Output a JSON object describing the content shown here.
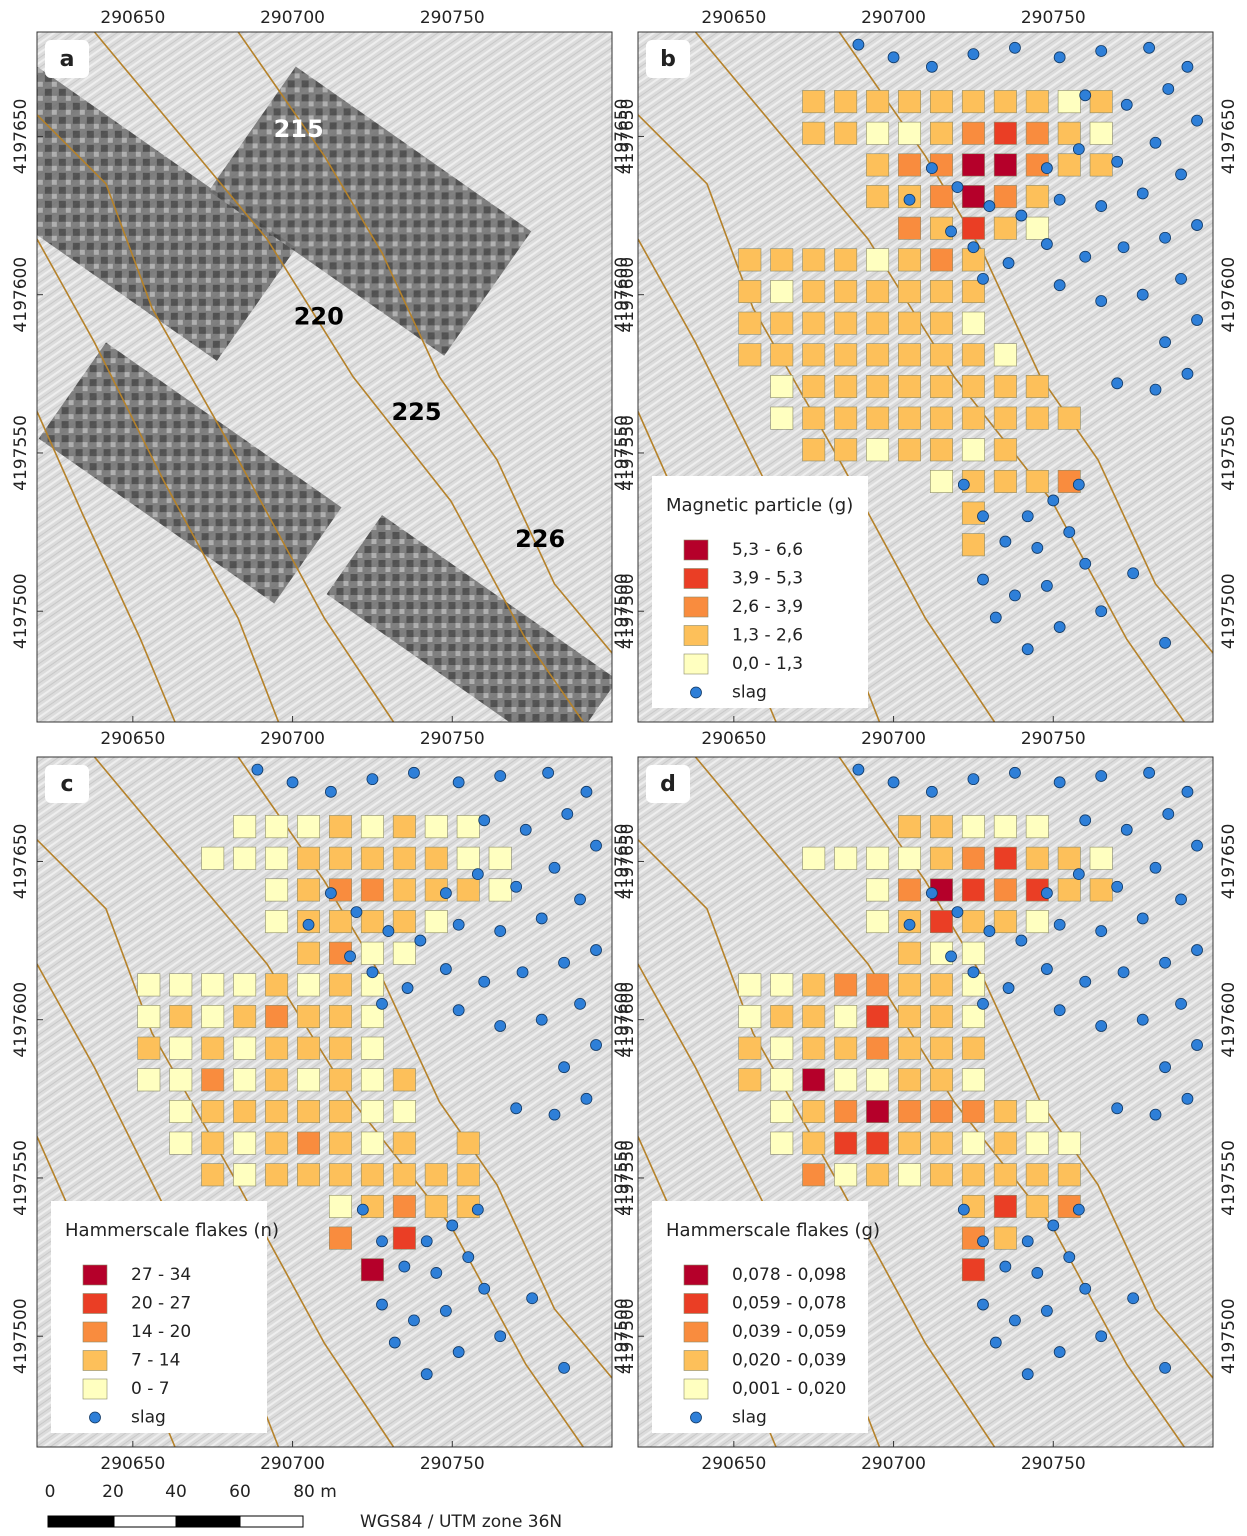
{
  "coordinate_system": "WGS84 / UTM zone 36N",
  "scale_bar": [
    "0",
    "20",
    "40",
    "60",
    "80 m"
  ],
  "axes": {
    "xlim": [
      290620,
      290800
    ],
    "ylim": [
      4197465,
      4197683
    ],
    "xticks": [
      290650,
      290700,
      290750
    ],
    "yticks": [
      4197500,
      4197550,
      4197600,
      4197650
    ]
  },
  "slag": {
    "label": "slag",
    "color": "#2e7fd8",
    "points": [
      [
        290689,
        4197679
      ],
      [
        290700,
        4197675
      ],
      [
        290712,
        4197672
      ],
      [
        290725,
        4197676
      ],
      [
        290738,
        4197678
      ],
      [
        290752,
        4197675
      ],
      [
        290765,
        4197677
      ],
      [
        290780,
        4197678
      ],
      [
        290792,
        4197672
      ],
      [
        290786,
        4197665
      ],
      [
        290773,
        4197660
      ],
      [
        290760,
        4197663
      ],
      [
        290795,
        4197655
      ],
      [
        290782,
        4197648
      ],
      [
        290770,
        4197642
      ],
      [
        290758,
        4197646
      ],
      [
        290748,
        4197640
      ],
      [
        290790,
        4197638
      ],
      [
        290778,
        4197632
      ],
      [
        290765,
        4197628
      ],
      [
        290752,
        4197630
      ],
      [
        290740,
        4197625
      ],
      [
        290730,
        4197628
      ],
      [
        290720,
        4197634
      ],
      [
        290712,
        4197640
      ],
      [
        290705,
        4197630
      ],
      [
        290795,
        4197622
      ],
      [
        290785,
        4197618
      ],
      [
        290772,
        4197615
      ],
      [
        290760,
        4197612
      ],
      [
        290748,
        4197616
      ],
      [
        290736,
        4197610
      ],
      [
        290725,
        4197615
      ],
      [
        290790,
        4197605
      ],
      [
        290778,
        4197600
      ],
      [
        290765,
        4197598
      ],
      [
        290752,
        4197603
      ],
      [
        290795,
        4197592
      ],
      [
        290785,
        4197585
      ],
      [
        290792,
        4197575
      ],
      [
        290782,
        4197570
      ],
      [
        290770,
        4197572
      ],
      [
        290718,
        4197620
      ],
      [
        290728,
        4197605
      ],
      [
        290758,
        4197540
      ],
      [
        290750,
        4197535
      ],
      [
        290742,
        4197530
      ],
      [
        290755,
        4197525
      ],
      [
        290745,
        4197520
      ],
      [
        290735,
        4197522
      ],
      [
        290760,
        4197515
      ],
      [
        290748,
        4197508
      ],
      [
        290738,
        4197505
      ],
      [
        290728,
        4197510
      ],
      [
        290752,
        4197495
      ],
      [
        290742,
        4197488
      ],
      [
        290765,
        4197500
      ],
      [
        290732,
        4197498
      ],
      [
        290775,
        4197512
      ],
      [
        290785,
        4197490
      ],
      [
        290722,
        4197540
      ],
      [
        290728,
        4197530
      ]
    ]
  },
  "panels": [
    {
      "label": "a",
      "annotations": [
        "215",
        "220",
        "225",
        "226"
      ]
    },
    {
      "label": "b",
      "legend": {
        "title": "Magnetic particle (g)",
        "classes": [
          {
            "label": "5,3 - 6,6",
            "color": "#b5002a"
          },
          {
            "label": "3,9 - 5,3",
            "color": "#ea3e25"
          },
          {
            "label": "2,6 - 3,9",
            "color": "#f98c3e"
          },
          {
            "label": "1,3 - 2,6",
            "color": "#fdc05a"
          },
          {
            "label": "0,0 - 1,3",
            "color": "#ffffc0"
          }
        ]
      },
      "rows": [
        {
          "northing": 4197661,
          "easting": 290675,
          "classes": [
            3,
            3,
            3,
            3,
            3,
            3,
            3,
            3,
            4,
            3
          ]
        },
        {
          "northing": 4197651,
          "easting": 290675,
          "classes": [
            3,
            3,
            4,
            4,
            3,
            2,
            1,
            2,
            3,
            4
          ]
        },
        {
          "northing": 4197641,
          "easting": 290695,
          "classes": [
            3,
            2,
            2,
            0,
            0,
            2,
            3,
            3
          ]
        },
        {
          "northing": 4197631,
          "easting": 290695,
          "classes": [
            3,
            3,
            2,
            0,
            2,
            3
          ]
        },
        {
          "northing": 4197621,
          "easting": 290705,
          "classes": [
            2,
            3,
            1,
            3,
            4
          ]
        },
        {
          "northing": 4197611,
          "easting": 290655,
          "classes": [
            3,
            3,
            3,
            3,
            4,
            3,
            2,
            3
          ]
        },
        {
          "northing": 4197601,
          "easting": 290655,
          "classes": [
            3,
            4,
            3,
            3,
            3,
            3,
            3,
            3
          ]
        },
        {
          "northing": 4197591,
          "easting": 290655,
          "classes": [
            3,
            3,
            3,
            3,
            3,
            3,
            3,
            4
          ]
        },
        {
          "northing": 4197581,
          "easting": 290655,
          "classes": [
            3,
            3,
            3,
            3,
            3,
            3,
            3,
            3,
            4
          ]
        },
        {
          "northing": 4197571,
          "easting": 290665,
          "classes": [
            4,
            3,
            3,
            3,
            3,
            3,
            3,
            3,
            3
          ]
        },
        {
          "northing": 4197561,
          "easting": 290665,
          "classes": [
            4,
            3,
            3,
            3,
            3,
            3,
            3,
            3,
            3,
            3
          ]
        },
        {
          "northing": 4197551,
          "easting": 290675,
          "classes": [
            3,
            3,
            4,
            3,
            3,
            4,
            3
          ]
        },
        {
          "northing": 4197541,
          "easting": 290715,
          "classes": [
            4,
            3,
            3,
            3,
            2
          ]
        },
        {
          "northing": 4197531,
          "easting": 290725,
          "classes": [
            3
          ]
        },
        {
          "northing": 4197521,
          "easting": 290725,
          "classes": [
            3
          ]
        }
      ]
    },
    {
      "label": "c",
      "legend": {
        "title": "Hammerscale flakes (n)",
        "classes": [
          {
            "label": "27 - 34",
            "color": "#b5002a"
          },
          {
            "label": "20 - 27",
            "color": "#ea3e25"
          },
          {
            "label": "14 - 20",
            "color": "#f98c3e"
          },
          {
            "label": "7 - 14",
            "color": "#fdc05a"
          },
          {
            "label": "0 - 7",
            "color": "#ffffc0"
          }
        ]
      },
      "rows": [
        {
          "northing": 4197661,
          "easting": 290685,
          "classes": [
            4,
            4,
            4,
            3,
            4,
            3,
            4,
            4
          ]
        },
        {
          "northing": 4197651,
          "easting": 290675,
          "classes": [
            4,
            4,
            4,
            3,
            3,
            3,
            3,
            3,
            4,
            4
          ]
        },
        {
          "northing": 4197641,
          "easting": 290695,
          "classes": [
            4,
            3,
            2,
            2,
            3,
            3,
            3,
            4
          ]
        },
        {
          "northing": 4197631,
          "easting": 290695,
          "classes": [
            4,
            3,
            3,
            3,
            3,
            4
          ]
        },
        {
          "northing": 4197621,
          "easting": 290705,
          "classes": [
            3,
            2,
            4,
            4
          ]
        },
        {
          "northing": 4197611,
          "easting": 290655,
          "classes": [
            4,
            4,
            4,
            4,
            3,
            4,
            3,
            4
          ]
        },
        {
          "northing": 4197601,
          "easting": 290655,
          "classes": [
            4,
            3,
            4,
            3,
            2,
            3,
            3,
            4
          ]
        },
        {
          "northing": 4197591,
          "easting": 290655,
          "classes": [
            3,
            4,
            3,
            4,
            3,
            3,
            3,
            4
          ]
        },
        {
          "northing": 4197581,
          "easting": 290655,
          "classes": [
            4,
            4,
            2,
            4,
            3,
            4,
            3,
            4,
            3
          ]
        },
        {
          "northing": 4197571,
          "easting": 290665,
          "classes": [
            4,
            3,
            3,
            3,
            3,
            3,
            4,
            4
          ]
        },
        {
          "northing": 4197561,
          "easting": 290665,
          "classes": [
            4,
            3,
            4,
            3,
            2,
            3,
            4,
            3,
            null,
            3
          ]
        },
        {
          "northing": 4197551,
          "easting": 290675,
          "classes": [
            3,
            4,
            3,
            3,
            3,
            3,
            3,
            3,
            3
          ]
        },
        {
          "northing": 4197541,
          "easting": 290715,
          "classes": [
            4,
            3,
            2,
            3,
            3
          ]
        },
        {
          "northing": 4197531,
          "easting": 290715,
          "classes": [
            2,
            null,
            1
          ]
        },
        {
          "northing": 4197521,
          "easting": 290725,
          "classes": [
            0
          ]
        }
      ]
    },
    {
      "label": "d",
      "legend": {
        "title": "Hammerscale flakes (g)",
        "classes": [
          {
            "label": "0,078 - 0,098",
            "color": "#b5002a"
          },
          {
            "label": "0,059 - 0,078",
            "color": "#ea3e25"
          },
          {
            "label": "0,039 - 0,059",
            "color": "#f98c3e"
          },
          {
            "label": "0,020 - 0,039",
            "color": "#fdc05a"
          },
          {
            "label": "0,001 - 0,020",
            "color": "#ffffc0"
          }
        ]
      },
      "rows": [
        {
          "northing": 4197661,
          "easting": 290705,
          "classes": [
            3,
            3,
            4,
            4,
            4
          ]
        },
        {
          "northing": 4197651,
          "easting": 290675,
          "classes": [
            4,
            4,
            4,
            4,
            3,
            2,
            1,
            3,
            3,
            4
          ]
        },
        {
          "northing": 4197641,
          "easting": 290695,
          "classes": [
            4,
            2,
            0,
            1,
            2,
            1,
            3,
            3
          ]
        },
        {
          "northing": 4197631,
          "easting": 290695,
          "classes": [
            4,
            3,
            1,
            3,
            3,
            4
          ]
        },
        {
          "northing": 4197621,
          "easting": 290705,
          "classes": [
            3,
            4,
            4
          ]
        },
        {
          "northing": 4197611,
          "easting": 290655,
          "classes": [
            4,
            4,
            3,
            2,
            2,
            3,
            3,
            4
          ]
        },
        {
          "northing": 4197601,
          "easting": 290655,
          "classes": [
            4,
            3,
            3,
            4,
            1,
            3,
            3,
            4
          ]
        },
        {
          "northing": 4197591,
          "easting": 290655,
          "classes": [
            3,
            4,
            3,
            3,
            2,
            3,
            3,
            3
          ]
        },
        {
          "northing": 4197581,
          "easting": 290655,
          "classes": [
            3,
            4,
            0,
            4,
            4,
            3,
            3,
            4
          ]
        },
        {
          "northing": 4197571,
          "easting": 290665,
          "classes": [
            4,
            3,
            2,
            0,
            2,
            2,
            2,
            3,
            4
          ]
        },
        {
          "northing": 4197561,
          "easting": 290665,
          "classes": [
            4,
            3,
            1,
            1,
            3,
            3,
            4,
            3,
            4,
            4
          ]
        },
        {
          "northing": 4197551,
          "easting": 290675,
          "classes": [
            2,
            4,
            3,
            4,
            3,
            3,
            3,
            3,
            3
          ]
        },
        {
          "northing": 4197541,
          "easting": 290725,
          "classes": [
            3,
            1,
            3,
            2
          ]
        },
        {
          "northing": 4197531,
          "easting": 290725,
          "classes": [
            2,
            3
          ]
        },
        {
          "northing": 4197521,
          "easting": 290725,
          "classes": [
            1
          ]
        }
      ]
    }
  ]
}
